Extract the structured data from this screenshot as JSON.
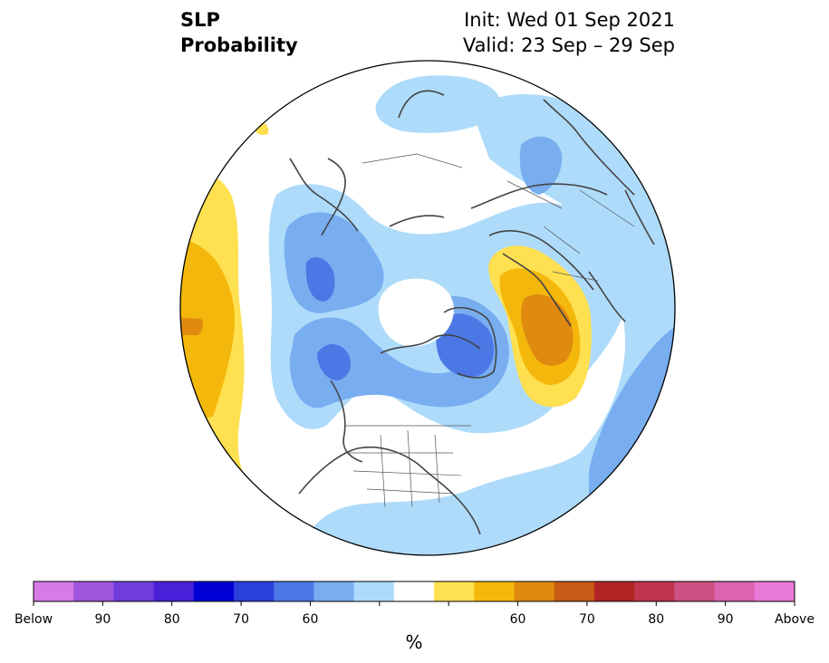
{
  "title": {
    "line1": "SLP",
    "line2": "Probability",
    "init": "Init: Wed 01 Sep 2021",
    "valid": "Valid: 23 Sep – 29 Sep"
  },
  "colorbar": {
    "unit": "%",
    "colors": [
      "#d67ae8",
      "#a055de",
      "#6e3ddc",
      "#4a20d8",
      "#0000d4",
      "#2a3fdc",
      "#4c78e6",
      "#78aef0",
      "#aedbfa",
      "#ffffff",
      "#ffe050",
      "#f3b80b",
      "#e08a10",
      "#c85a16",
      "#b02424",
      "#c0354e",
      "#cc5082",
      "#dc64b0",
      "#e87ad8"
    ],
    "tick_labels": [
      "Below",
      "90",
      "80",
      "70",
      "60",
      "",
      "",
      "60",
      "70",
      "80",
      "90",
      "Above"
    ]
  },
  "map": {
    "projection": "north-polar-stereographic",
    "fields": [
      {
        "category": "below",
        "level": "50-60",
        "color": "#aedbfa"
      },
      {
        "category": "below",
        "level": "60-70",
        "color": "#78aef0"
      },
      {
        "category": "below",
        "level": "70-80",
        "color": "#4c78e6"
      },
      {
        "category": "above",
        "level": "50-60",
        "color": "#ffe050"
      },
      {
        "category": "above",
        "level": "60-70",
        "color": "#f3b80b"
      },
      {
        "category": "above",
        "level": "70-80",
        "color": "#e08a10"
      }
    ]
  }
}
